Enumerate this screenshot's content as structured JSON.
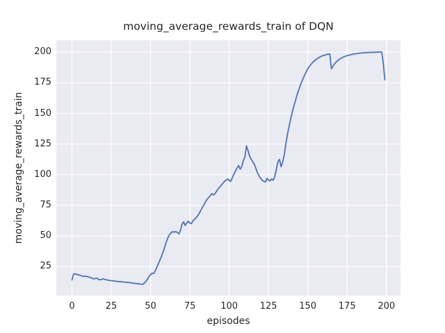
{
  "figure": {
    "background": "#ffffff"
  },
  "chart_data": {
    "type": "line",
    "title": "moving_average_rewards_train of DQN",
    "xlabel": "episodes",
    "ylabel": "moving_average_rewards_train",
    "x_ticks": [
      0,
      25,
      50,
      75,
      100,
      125,
      150,
      175,
      200
    ],
    "y_ticks": [
      25,
      50,
      75,
      100,
      125,
      150,
      175,
      200
    ],
    "x_range": [
      -9.95,
      208.95
    ],
    "y_range": [
      1.3,
      209.8
    ],
    "grid": true,
    "legend_position": "none",
    "style": {
      "axes_background": "#eaeaf2",
      "grid_color": "#ffffff",
      "line_color": "#4c72b0",
      "text_color": "#262626",
      "line_width": 1.8
    },
    "series": [
      {
        "name": "moving_average_rewards_train",
        "x_start": 0,
        "x_step": 1,
        "values": [
          14.0,
          18.8,
          19.1,
          18.5,
          18.2,
          17.9,
          17.4,
          16.9,
          17.2,
          17.0,
          16.7,
          16.4,
          16.0,
          15.3,
          14.8,
          15.4,
          15.6,
          14.3,
          14.1,
          14.6,
          14.8,
          14.4,
          14.1,
          13.9,
          13.6,
          13.4,
          13.3,
          13.1,
          13.0,
          12.8,
          12.7,
          12.6,
          12.5,
          12.3,
          12.2,
          12.1,
          12.0,
          11.8,
          11.6,
          11.4,
          11.2,
          11.1,
          10.9,
          10.8,
          10.6,
          10.5,
          11.4,
          12.8,
          14.6,
          16.8,
          18.4,
          19.6,
          19.2,
          21.5,
          24.5,
          27.5,
          30.5,
          33.5,
          37.0,
          41.0,
          45.0,
          48.5,
          51.0,
          52.5,
          53.5,
          53.0,
          53.6,
          52.8,
          51.6,
          54.5,
          59.5,
          61.5,
          58.5,
          60.5,
          62.0,
          60.5,
          60.0,
          62.5,
          63.5,
          65.0,
          66.5,
          68.5,
          71.0,
          73.5,
          75.5,
          78.0,
          80.0,
          81.5,
          83.0,
          84.5,
          83.5,
          84.5,
          86.5,
          88.5,
          90.0,
          91.5,
          93.0,
          94.5,
          95.5,
          96.5,
          95.5,
          94.5,
          97.5,
          100.5,
          103.0,
          105.5,
          107.5,
          104.5,
          106.5,
          111.5,
          114.5,
          123.5,
          119.5,
          115.0,
          112.5,
          110.5,
          108.5,
          105.0,
          101.5,
          99.0,
          97.0,
          95.5,
          94.5,
          94.0,
          97.0,
          95.5,
          95.0,
          96.5,
          95.5,
          98.5,
          104.5,
          110.5,
          112.5,
          106.5,
          110.5,
          116.0,
          125.0,
          132.5,
          139.0,
          145.0,
          150.5,
          155.5,
          160.0,
          164.5,
          168.5,
          172.0,
          175.5,
          178.5,
          181.5,
          184.0,
          186.5,
          188.5,
          190.0,
          191.5,
          192.8,
          193.8,
          194.8,
          195.6,
          196.3,
          196.9,
          197.4,
          197.8,
          198.1,
          198.4,
          198.6,
          186.5,
          188.5,
          190.5,
          192.0,
          193.2,
          194.2,
          195.0,
          195.7,
          196.3,
          196.8,
          197.2,
          197.6,
          197.9,
          198.2,
          198.5,
          198.7,
          198.9,
          199.1,
          199.25,
          199.4,
          199.5,
          199.6,
          199.7,
          199.75,
          199.8,
          199.85,
          199.9,
          199.95,
          200.0,
          200.05,
          200.1,
          200.15,
          200.2,
          191.0,
          177.5
        ]
      }
    ]
  }
}
